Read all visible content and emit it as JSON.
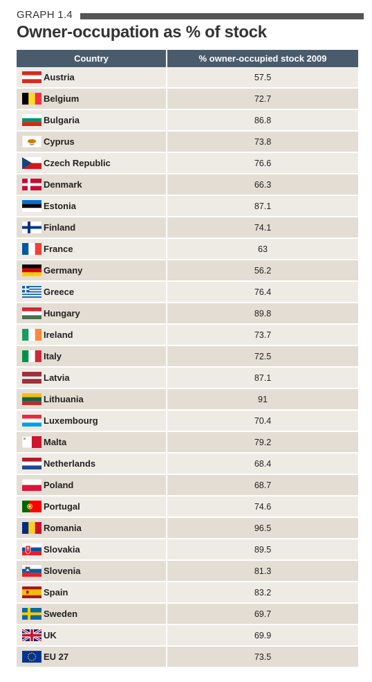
{
  "graph_label": "GRAPH 1.4",
  "title": "Owner-occupation as % of stock",
  "chart_data": {
    "type": "table",
    "columns": [
      "Country",
      "% owner-occupied stock 2009"
    ],
    "rows": [
      {
        "country": "Austria",
        "value": "57.5",
        "flag": "austria-flag-icon"
      },
      {
        "country": "Belgium",
        "value": "72.7",
        "flag": "belgium-flag-icon"
      },
      {
        "country": "Bulgaria",
        "value": "86.8",
        "flag": "bulgaria-flag-icon"
      },
      {
        "country": "Cyprus",
        "value": "73.8",
        "flag": "cyprus-flag-icon"
      },
      {
        "country": "Czech Republic",
        "value": "76.6",
        "flag": "czech-flag-icon"
      },
      {
        "country": "Denmark",
        "value": "66.3",
        "flag": "denmark-flag-icon"
      },
      {
        "country": "Estonia",
        "value": "87.1",
        "flag": "estonia-flag-icon"
      },
      {
        "country": "Finland",
        "value": "74.1",
        "flag": "finland-flag-icon"
      },
      {
        "country": "France",
        "value": "63",
        "flag": "france-flag-icon"
      },
      {
        "country": "Germany",
        "value": "56.2",
        "flag": "germany-flag-icon"
      },
      {
        "country": "Greece",
        "value": "76.4",
        "flag": "greece-flag-icon"
      },
      {
        "country": "Hungary",
        "value": "89.8",
        "flag": "hungary-flag-icon"
      },
      {
        "country": "Ireland",
        "value": "73.7",
        "flag": "ireland-flag-icon"
      },
      {
        "country": "Italy",
        "value": "72.5",
        "flag": "italy-flag-icon"
      },
      {
        "country": "Latvia",
        "value": "87.1",
        "flag": "latvia-flag-icon"
      },
      {
        "country": "Lithuania",
        "value": "91",
        "flag": "lithuania-flag-icon"
      },
      {
        "country": "Luxembourg",
        "value": "70.4",
        "flag": "luxembourg-flag-icon"
      },
      {
        "country": "Malta",
        "value": "79.2",
        "flag": "malta-flag-icon"
      },
      {
        "country": "Netherlands",
        "value": "68.4",
        "flag": "netherlands-flag-icon"
      },
      {
        "country": "Poland",
        "value": "68.7",
        "flag": "poland-flag-icon"
      },
      {
        "country": "Portugal",
        "value": "74.6",
        "flag": "portugal-flag-icon"
      },
      {
        "country": "Romania",
        "value": "96.5",
        "flag": "romania-flag-icon"
      },
      {
        "country": "Slovakia",
        "value": "89.5",
        "flag": "slovakia-flag-icon"
      },
      {
        "country": "Slovenia",
        "value": "81.3",
        "flag": "slovenia-flag-icon"
      },
      {
        "country": "Spain",
        "value": "83.2",
        "flag": "spain-flag-icon"
      },
      {
        "country": "Sweden",
        "value": "69.7",
        "flag": "sweden-flag-icon"
      },
      {
        "country": "UK",
        "value": "69.9",
        "flag": "uk-flag-icon"
      },
      {
        "country": "EU 27",
        "value": "73.5",
        "flag": "eu-flag-icon"
      }
    ]
  },
  "colors": {
    "header_bg": "#4a5b6c",
    "row_light": "#eeebe5",
    "row_dark": "#e3ddd3",
    "title_text": "#333333"
  }
}
